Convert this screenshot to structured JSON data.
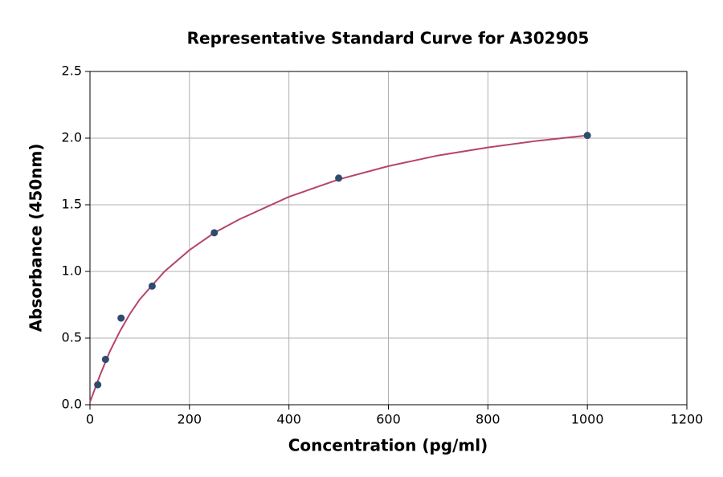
{
  "chart_data": {
    "type": "scatter",
    "title": "Representative Standard Curve for A302905",
    "xlabel": "Concentration (pg/ml)",
    "ylabel": "Absorbance (450nm)",
    "xlim": [
      0,
      1200
    ],
    "xticks": [
      0,
      200,
      400,
      600,
      800,
      1000,
      1200
    ],
    "ylim": [
      0,
      2.5
    ],
    "yticks": [
      {
        "value": 0,
        "label": "0.0"
      },
      {
        "value": 0.5,
        "label": "0.5"
      },
      {
        "value": 1,
        "label": "1.0"
      },
      {
        "value": 1.5,
        "label": "1.5"
      },
      {
        "value": 2,
        "label": "2.0"
      },
      {
        "value": 2.5,
        "label": "2.5"
      }
    ],
    "grid": true,
    "series": [
      {
        "mode": "markers",
        "color": "#2f4b70",
        "x": [
          15.6,
          31.25,
          62.5,
          125,
          250,
          500,
          1000
        ],
        "values": [
          0.15,
          0.34,
          0.65,
          0.89,
          1.29,
          1.7,
          2.02
        ]
      },
      {
        "mode": "line",
        "color": "#b5446a",
        "x": [
          0,
          10,
          20,
          40,
          60,
          80,
          100,
          150,
          200,
          250,
          300,
          400,
          500,
          600,
          700,
          800,
          900,
          1000
        ],
        "values": [
          0.02,
          0.12,
          0.22,
          0.4,
          0.55,
          0.68,
          0.79,
          1.0,
          1.16,
          1.29,
          1.39,
          1.56,
          1.69,
          1.79,
          1.87,
          1.93,
          1.98,
          2.02
        ]
      }
    ]
  }
}
